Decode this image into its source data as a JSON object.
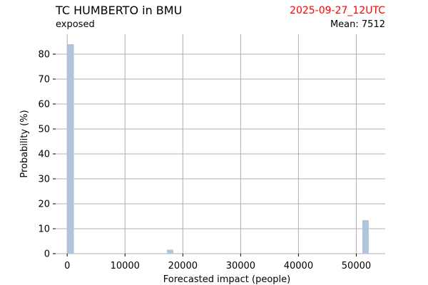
{
  "header": {
    "title": "TC HUMBERTO in BMU",
    "subtitle": "exposed",
    "timestamp": "2025-09-27_12UTC",
    "mean_label": "Mean: 7512"
  },
  "colors": {
    "bar": "#b0c4de",
    "grid": "#b0b0b0",
    "timestamp": "#ff0000"
  },
  "chart_data": {
    "type": "bar",
    "title": "TC HUMBERTO in BMU",
    "xlabel": "Forecasted impact (people)",
    "ylabel": "Probability (%)",
    "xlim": [
      -2000,
      55000
    ],
    "ylim": [
      0,
      88
    ],
    "xticks": [
      0,
      10000,
      20000,
      30000,
      40000,
      50000
    ],
    "yticks": [
      0,
      10,
      20,
      30,
      40,
      50,
      60,
      70,
      80
    ],
    "bin_width": 1100,
    "bins": [
      {
        "x": 600,
        "value": 84
      },
      {
        "x": 17800,
        "value": 1.6
      },
      {
        "x": 51600,
        "value": 13.4
      }
    ],
    "grid": true
  }
}
